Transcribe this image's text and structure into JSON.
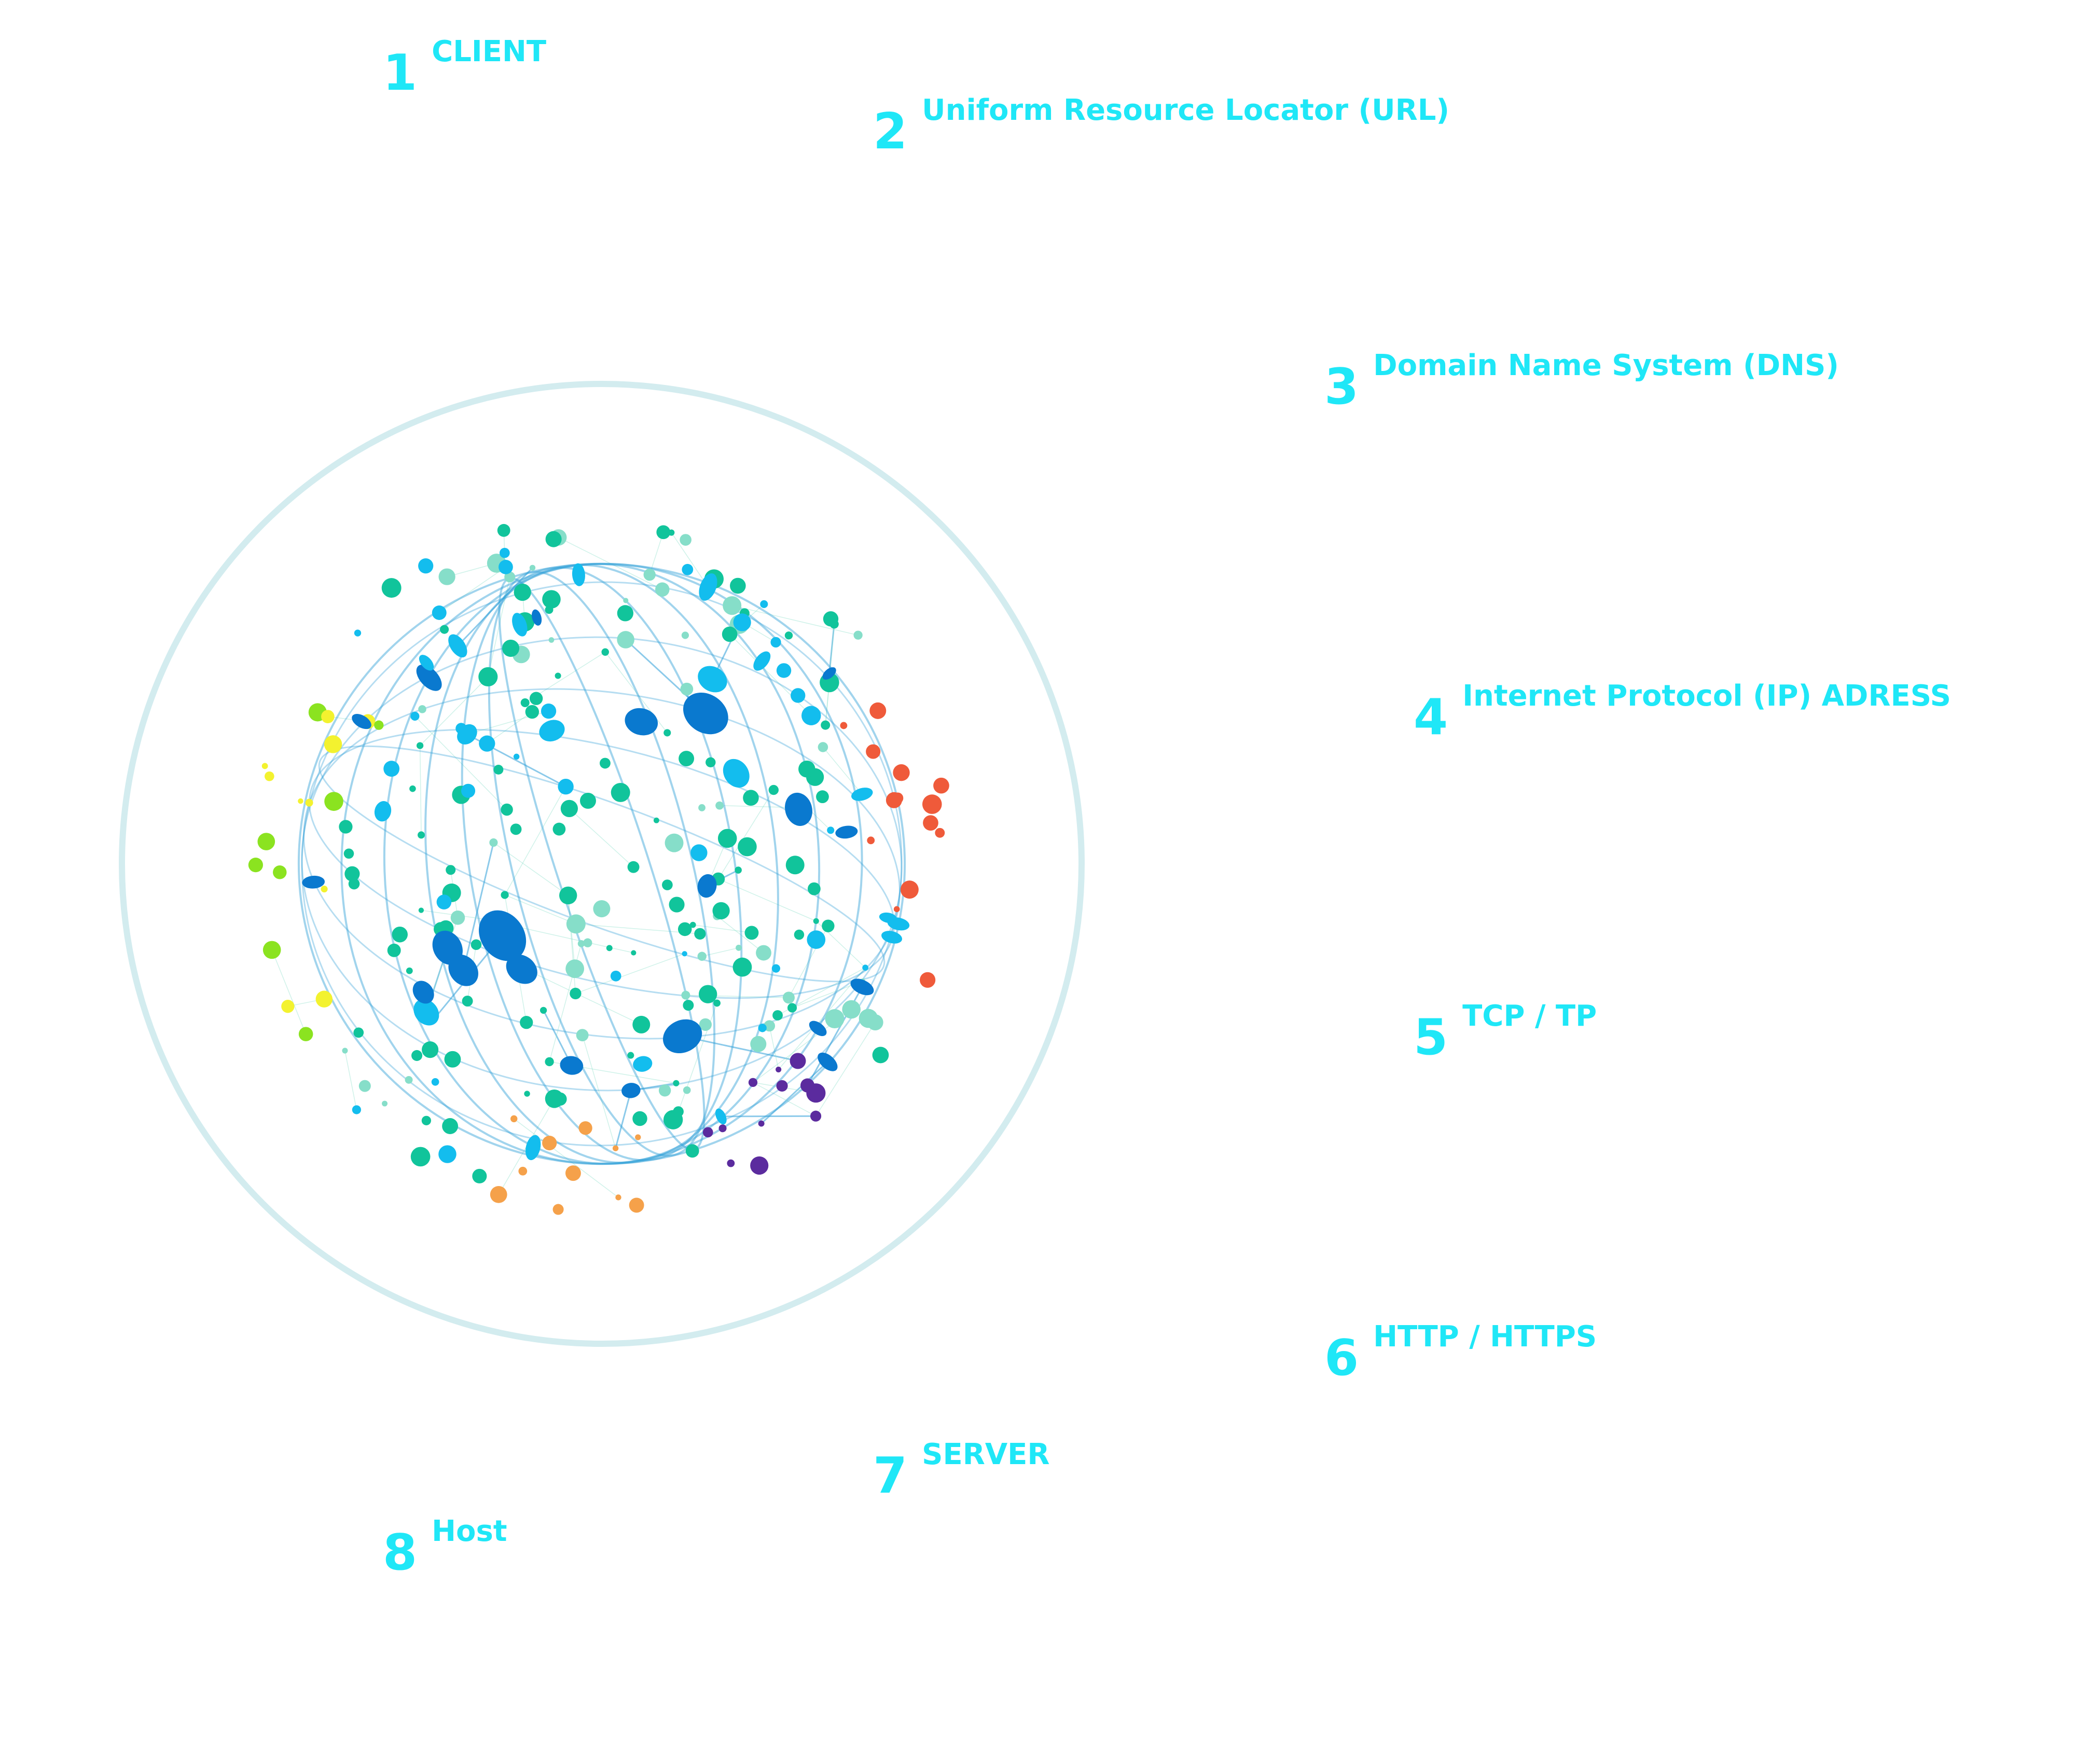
{
  "colors": {
    "label": "#1FE7F7",
    "ring": "#D3ECEF",
    "node_dark": "#0A79CF",
    "node_light": "#13BDEE",
    "node_teal": "#11C49B",
    "node_mint": "#86DEC9",
    "node_green": "#8BE320",
    "node_yellow": "#F3F22F",
    "node_red": "#EF5A3A",
    "node_orange": "#F5A14A",
    "node_purple": "#5B2B9E",
    "link": "#2E9FD8"
  },
  "steps": [
    {
      "number": "1",
      "label": "CLIENT"
    },
    {
      "number": "2",
      "label": "Uniform Resource Locator (URL)"
    },
    {
      "number": "3",
      "label": "Domain Name System (DNS)"
    },
    {
      "number": "4",
      "label": "Internet Protocol (IP) ADRESS"
    },
    {
      "number": "5",
      "label": "TCP / TP"
    },
    {
      "number": "6",
      "label": "HTTP / HTTPS"
    },
    {
      "number": "7",
      "label": "SERVER"
    },
    {
      "number": "8",
      "label": "Host"
    }
  ]
}
